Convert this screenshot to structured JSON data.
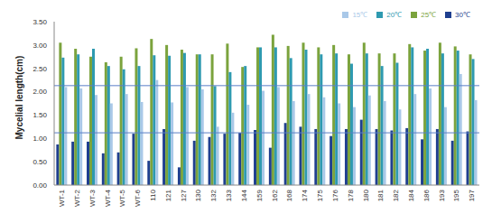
{
  "chart_data": {
    "type": "bar",
    "y_label": "Mycelial length(cm)",
    "categories": [
      "WT-1",
      "WT-2",
      "WT-3",
      "WT-4",
      "WT-5",
      "WT-6",
      "110",
      "121",
      "127",
      "130",
      "132",
      "133",
      "144",
      "159",
      "162",
      "168",
      "174",
      "175",
      "176",
      "178",
      "180",
      "181",
      "182",
      "184",
      "186",
      "193",
      "195",
      "197"
    ],
    "series": [
      {
        "name": "30℃",
        "color": "#1f3f8f",
        "values": [
          0.87,
          0.93,
          0.93,
          0.68,
          0.7,
          1.1,
          0.52,
          1.2,
          0.38,
          0.95,
          1.03,
          1.1,
          1.12,
          1.18,
          0.8,
          1.33,
          1.25,
          1.2,
          1.05,
          1.2,
          1.4,
          1.2,
          1.17,
          1.22,
          0.98,
          1.2,
          0.95,
          1.15
        ]
      },
      {
        "name": "25℃",
        "color": "#7ba33d",
        "values": [
          3.05,
          2.92,
          2.75,
          2.63,
          2.75,
          2.93,
          3.13,
          3.0,
          2.9,
          2.8,
          2.8,
          3.03,
          2.53,
          2.95,
          3.22,
          2.98,
          3.05,
          2.95,
          3.0,
          2.8,
          3.05,
          2.82,
          2.82,
          3.02,
          2.88,
          3.05,
          2.97,
          2.8
        ]
      },
      {
        "name": "20℃",
        "color": "#2e9ab0",
        "values": [
          2.73,
          2.8,
          2.92,
          2.55,
          2.48,
          2.55,
          2.78,
          2.77,
          2.83,
          2.8,
          2.12,
          2.42,
          2.55,
          2.95,
          2.95,
          2.72,
          2.9,
          2.8,
          2.82,
          2.6,
          2.82,
          2.55,
          2.62,
          2.95,
          2.92,
          2.82,
          2.88,
          2.7
        ]
      },
      {
        "name": "15℃",
        "color": "#a9c8e8",
        "values": [
          2.1,
          2.07,
          1.93,
          1.75,
          1.95,
          1.78,
          2.25,
          1.77,
          2.1,
          2.05,
          1.25,
          1.55,
          1.72,
          2.02,
          2.1,
          1.8,
          1.95,
          1.88,
          1.75,
          1.67,
          1.92,
          1.8,
          1.62,
          1.95,
          2.07,
          1.67,
          2.38,
          1.82
        ]
      }
    ],
    "reference_lines": [
      2.13,
      1.12
    ],
    "ylim": [
      0,
      3.5
    ],
    "yticks": [
      {
        "value": 0,
        "label": "0.00"
      },
      {
        "value": 0.5,
        "label": "0.50"
      },
      {
        "value": 1,
        "label": "1.00"
      },
      {
        "value": 1.5,
        "label": "1.50"
      },
      {
        "value": 2,
        "label": "2.00"
      },
      {
        "value": 2.5,
        "label": "2.50"
      },
      {
        "value": 3,
        "label": "3.00"
      },
      {
        "value": 3.5,
        "label": "3.50"
      }
    ],
    "legend": "top-right",
    "grid": false
  }
}
